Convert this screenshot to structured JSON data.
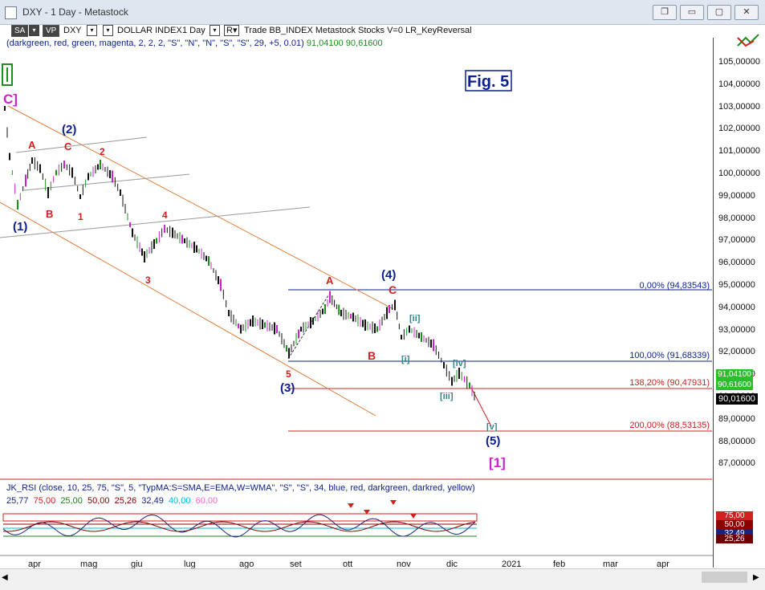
{
  "window": {
    "title": "DXY - 1 Day - Metastock",
    "controls": [
      "restore",
      "minimize",
      "maximize",
      "close"
    ]
  },
  "toolbar": {
    "sa": "SA",
    "vp": "VP",
    "symbol": "DXY",
    "name": "DOLLAR INDEX",
    "period": "1 Day",
    "r": "R",
    "rest": "Trade  BB_INDEX  Metastock  Stocks  V=0  LR_KeyReversal"
  },
  "indicator_line": {
    "params": "(darkgreen, red, green, magenta, 2, 2, 2, \"S\", \"N\", \"N\", \"S\", \"S\", 29, +5, 0.01)",
    "v1": "91,04100",
    "v2": "90,61600"
  },
  "annotations": {
    "fig": "Fig. 5",
    "c_top": "C]",
    "one_bracket": "[1]"
  },
  "waves": [
    {
      "label": "(1)",
      "color": "navy"
    },
    {
      "label": "(2)",
      "color": "navy"
    },
    {
      "label": "(3)",
      "color": "navy"
    },
    {
      "label": "(4)",
      "color": "navy"
    },
    {
      "label": "(5)",
      "color": "navy"
    },
    {
      "label": "A",
      "color": "red"
    },
    {
      "label": "B",
      "color": "red"
    },
    {
      "label": "C",
      "color": "red"
    },
    {
      "label": "1",
      "color": "red"
    },
    {
      "label": "2",
      "color": "red"
    },
    {
      "label": "3",
      "color": "red"
    },
    {
      "label": "4",
      "color": "red"
    },
    {
      "label": "5",
      "color": "red"
    },
    {
      "label": "A",
      "color": "red"
    },
    {
      "label": "B",
      "color": "red"
    },
    {
      "label": "C",
      "color": "red"
    },
    {
      "label": "[i]",
      "color": "teal"
    },
    {
      "label": "[ii]",
      "color": "teal"
    },
    {
      "label": "[iii]",
      "color": "teal"
    },
    {
      "label": "[iv]",
      "color": "teal"
    },
    {
      "label": "[v]",
      "color": "teal"
    }
  ],
  "fib_levels": [
    {
      "label": "0,00% (94,83543)",
      "color": "#0a1e8c"
    },
    {
      "label": "100,00% (91,68339)",
      "color": "#0a1e8c"
    },
    {
      "label": "138,20% (90,47931)",
      "color": "#d22020"
    },
    {
      "label": "200,00% (88,53135)",
      "color": "#d22020"
    }
  ],
  "price_axis": {
    "ticks": [
      "105,00000",
      "104,00000",
      "103,00000",
      "102,00000",
      "101,00000",
      "100,00000",
      "99,00000",
      "98,00000",
      "97,00000",
      "96,00000",
      "95,00000",
      "94,00000",
      "93,00000",
      "92,00000",
      "91,00000",
      "90,00000",
      "89,00000",
      "88,00000",
      "87,00000"
    ],
    "badge_green_1": "91,04100",
    "badge_green_2": "90,61600",
    "badge_black": "90,01600"
  },
  "rsi": {
    "params": "JK_RSI   (close,  10,  25, 75,  \"S\",  5,  \"TypMA:S=SMA,E=EMA,W=WMA\",  \"S\",  \"S\",  34,  blue,  red,  darkgreen,  darkred,  yellow)",
    "values": [
      {
        "text": "25,77",
        "color": "#1a237e"
      },
      {
        "text": "75,00",
        "color": "#d22020"
      },
      {
        "text": "25,00",
        "color": "#1a7f1a"
      },
      {
        "text": "50,00",
        "color": "#8b0000"
      },
      {
        "text": "25,26",
        "color": "#8b0000"
      },
      {
        "text": "32,49",
        "color": "#1a237e"
      },
      {
        "text": "40,00",
        "color": "#00bcd4"
      },
      {
        "text": "60,00",
        "color": "#ff66cc"
      }
    ],
    "badges": [
      "75,00",
      "50,00",
      "32,49",
      "25,26"
    ]
  },
  "time_axis": [
    "apr",
    "mag",
    "giu",
    "lug",
    "ago",
    "set",
    "ott",
    "nov",
    "dic",
    "2021",
    "feb",
    "mar",
    "apr"
  ]
}
